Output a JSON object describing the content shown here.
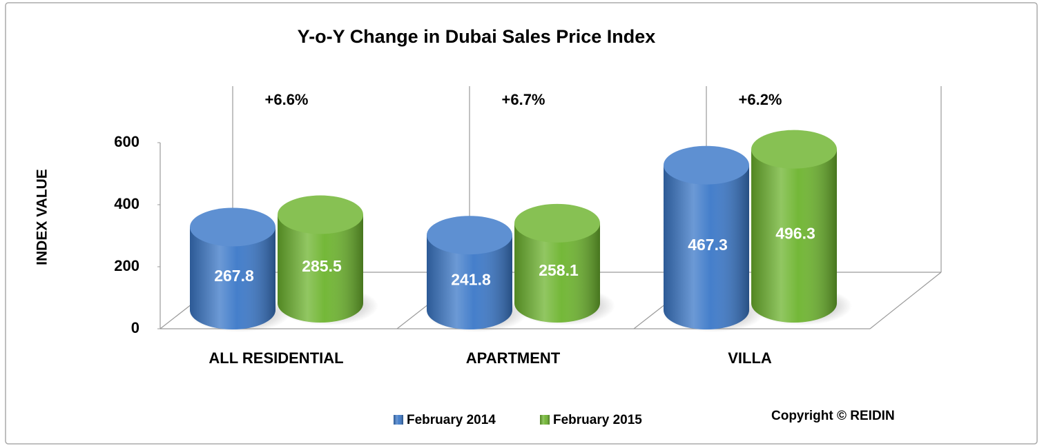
{
  "chart_data": {
    "type": "bar",
    "title": "Y-o-Y Change in Dubai Sales Price Index",
    "y_label": "INDEX VALUE",
    "categories": [
      "ALL RESIDENTIAL",
      "APARTMENT",
      "VILLA"
    ],
    "series": [
      {
        "name": "February 2014",
        "color": "#3b78c8",
        "values": [
          267.8,
          241.8,
          467.3
        ]
      },
      {
        "name": "February 2015",
        "color": "#6db42e",
        "values": [
          285.5,
          258.1,
          496.3
        ]
      }
    ],
    "annotations": [
      "+6.6%",
      "+6.7%",
      "+6.2%"
    ],
    "ylim": [
      0,
      600
    ],
    "yticks": [
      0,
      200,
      400,
      600
    ],
    "grid": false,
    "legend": "bottom",
    "copyright": "Copyright © REIDIN"
  }
}
